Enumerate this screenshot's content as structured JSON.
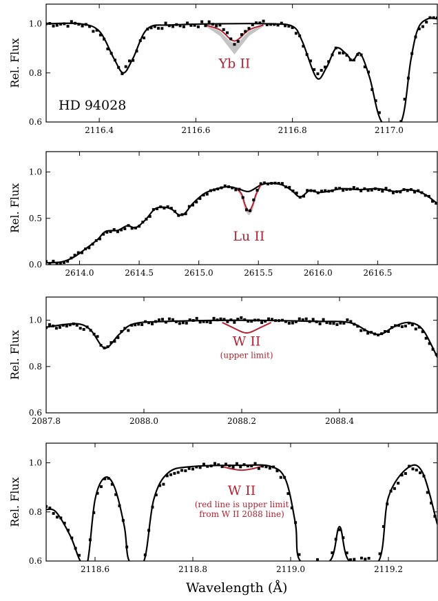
{
  "figure": {
    "ylabel": "Rel. Flux",
    "xlabel": "Wavelength (Å)"
  },
  "colors": {
    "data": "#000000",
    "model": "#000000",
    "red": "#b22230",
    "band": "#c4c4c4"
  },
  "chart_data": [
    {
      "type": "scatter",
      "xlim": [
        2116.29,
        2117.1
      ],
      "ylim": [
        0.6,
        1.08
      ],
      "xticks": [
        2116.4,
        2116.6,
        2116.8,
        2117.0
      ],
      "xtick_labels": [
        "2116.4",
        "2116.6",
        "2116.8",
        "2117.0"
      ],
      "yticks": [
        0.6,
        0.8,
        1.0
      ],
      "ytick_labels": [
        "0.6",
        "0.8",
        "1.0"
      ],
      "ylabel": "Rel. Flux",
      "star_label": "HD 94028",
      "annotation": {
        "lines": [
          "Yb II"
        ],
        "x": 2116.68,
        "y": 0.82
      },
      "line_center": 2116.68,
      "continuum": [
        [
          2116.29,
          1.0
        ],
        [
          2116.36,
          1.0
        ],
        [
          2116.4,
          0.97
        ],
        [
          2116.43,
          0.86
        ],
        [
          2116.45,
          0.8
        ],
        [
          2116.47,
          0.86
        ],
        [
          2116.5,
          0.98
        ],
        [
          2116.55,
          0.995
        ],
        [
          2116.65,
          1.0
        ],
        [
          2116.75,
          1.0
        ],
        [
          2116.8,
          0.99
        ],
        [
          2116.82,
          0.93
        ],
        [
          2116.85,
          0.78
        ],
        [
          2116.87,
          0.82
        ],
        [
          2116.89,
          0.9
        ],
        [
          2116.91,
          0.88
        ],
        [
          2116.925,
          0.85
        ],
        [
          2116.94,
          0.88
        ],
        [
          2116.96,
          0.78
        ],
        [
          2116.985,
          0.6
        ],
        [
          2117.025,
          0.6
        ],
        [
          2117.045,
          0.85
        ],
        [
          2117.06,
          0.98
        ],
        [
          2117.08,
          1.02
        ],
        [
          2117.1,
          1.02
        ]
      ],
      "red_line": [
        [
          2116.62,
          0.995
        ],
        [
          2116.65,
          0.975
        ],
        [
          2116.67,
          0.94
        ],
        [
          2116.68,
          0.93
        ],
        [
          2116.69,
          0.94
        ],
        [
          2116.71,
          0.975
        ],
        [
          2116.74,
          0.995
        ]
      ],
      "band": [
        [
          2116.62,
          0.995,
          0.99
        ],
        [
          2116.65,
          0.97,
          0.95
        ],
        [
          2116.67,
          0.93,
          0.9
        ],
        [
          2116.68,
          0.92,
          0.875
        ],
        [
          2116.69,
          0.93,
          0.9
        ],
        [
          2116.71,
          0.97,
          0.95
        ],
        [
          2116.74,
          0.995,
          0.99
        ]
      ],
      "observed": {
        "x_start": 2116.29,
        "x_end": 2117.1,
        "step": 0.0075,
        "noise": 0.012,
        "trough_from": 2116.985,
        "trough_to": 2117.025,
        "line_depth": 0.075,
        "line_width": 0.02
      }
    },
    {
      "type": "scatter",
      "xlim": [
        2613.72,
        2617.0
      ],
      "ylim": [
        0.0,
        1.22
      ],
      "xticks": [
        2614.0,
        2614.5,
        2615.0,
        2615.5,
        2616.0,
        2616.5
      ],
      "xtick_labels": [
        "2614.0",
        "2614.5",
        "2615.0",
        "2615.5",
        "2616.0",
        "2616.5"
      ],
      "yticks": [
        0.0,
        0.5,
        1.0
      ],
      "ytick_labels": [
        "0.0",
        "0.5",
        "1.0"
      ],
      "ylabel": "Rel. Flux",
      "annotation": {
        "lines": [
          "Lu II"
        ],
        "x": 2615.42,
        "y": 0.26
      },
      "line_center": 2615.42,
      "continuum": [
        [
          2613.72,
          0.02
        ],
        [
          2613.85,
          0.03
        ],
        [
          2613.95,
          0.08
        ],
        [
          2614.05,
          0.17
        ],
        [
          2614.15,
          0.27
        ],
        [
          2614.22,
          0.36
        ],
        [
          2614.32,
          0.37
        ],
        [
          2614.4,
          0.42
        ],
        [
          2614.47,
          0.4
        ],
        [
          2614.55,
          0.48
        ],
        [
          2614.63,
          0.6
        ],
        [
          2614.7,
          0.62
        ],
        [
          2614.77,
          0.6
        ],
        [
          2614.83,
          0.54
        ],
        [
          2614.88,
          0.55
        ],
        [
          2614.95,
          0.66
        ],
        [
          2615.05,
          0.77
        ],
        [
          2615.15,
          0.82
        ],
        [
          2615.25,
          0.84
        ],
        [
          2615.33,
          0.82
        ],
        [
          2615.42,
          0.79
        ],
        [
          2615.52,
          0.86
        ],
        [
          2615.6,
          0.88
        ],
        [
          2615.7,
          0.86
        ],
        [
          2615.78,
          0.8
        ],
        [
          2615.85,
          0.73
        ],
        [
          2615.93,
          0.8
        ],
        [
          2616.0,
          0.78
        ],
        [
          2616.08,
          0.79
        ],
        [
          2616.2,
          0.82
        ],
        [
          2616.35,
          0.81
        ],
        [
          2616.5,
          0.82
        ],
        [
          2616.65,
          0.79
        ],
        [
          2616.75,
          0.81
        ],
        [
          2616.88,
          0.77
        ],
        [
          2617.0,
          0.66
        ]
      ],
      "red_line": [
        [
          2615.32,
          0.82
        ],
        [
          2615.36,
          0.76
        ],
        [
          2615.39,
          0.64
        ],
        [
          2615.42,
          0.58
        ],
        [
          2615.45,
          0.64
        ],
        [
          2615.48,
          0.76
        ],
        [
          2615.52,
          0.86
        ]
      ],
      "band": [
        [
          2615.32,
          0.82,
          0.81
        ],
        [
          2615.36,
          0.76,
          0.72
        ],
        [
          2615.39,
          0.63,
          0.58
        ],
        [
          2615.42,
          0.58,
          0.53
        ],
        [
          2615.45,
          0.63,
          0.58
        ],
        [
          2615.48,
          0.76,
          0.72
        ],
        [
          2615.52,
          0.86,
          0.85
        ]
      ],
      "observed": {
        "x_start": 2613.72,
        "x_end": 2617.0,
        "step": 0.03,
        "noise": 0.02,
        "line_depth": 0.24,
        "line_width": 0.05
      }
    },
    {
      "type": "scatter",
      "xlim": [
        2087.8,
        2088.6
      ],
      "ylim": [
        0.6,
        1.1
      ],
      "xticks": [
        2087.8,
        2088.0,
        2088.2,
        2088.4
      ],
      "xtick_labels": [
        "2087.8",
        "2088.0",
        "2088.2",
        "2088.4"
      ],
      "yticks": [
        0.6,
        0.8,
        1.0
      ],
      "ytick_labels": [
        "0.6",
        "0.8",
        "1.0"
      ],
      "ylabel": "Rel. Flux",
      "annotation": {
        "lines": [
          "W II",
          "(upper limit)"
        ],
        "x": 2088.21,
        "y": 0.89
      },
      "line_center": 2088.21,
      "continuum": [
        [
          2087.8,
          0.97
        ],
        [
          2087.86,
          0.985
        ],
        [
          2087.89,
          0.96
        ],
        [
          2087.92,
          0.88
        ],
        [
          2087.95,
          0.94
        ],
        [
          2087.98,
          0.985
        ],
        [
          2088.05,
          0.995
        ],
        [
          2088.2,
          1.0
        ],
        [
          2088.35,
          0.995
        ],
        [
          2088.42,
          0.99
        ],
        [
          2088.46,
          0.95
        ],
        [
          2088.485,
          0.94
        ],
        [
          2088.51,
          0.97
        ],
        [
          2088.54,
          0.99
        ],
        [
          2088.57,
          0.96
        ],
        [
          2088.6,
          0.84
        ]
      ],
      "red_line": [
        [
          2088.16,
          0.99
        ],
        [
          2088.18,
          0.97
        ],
        [
          2088.2,
          0.95
        ],
        [
          2088.21,
          0.945
        ],
        [
          2088.22,
          0.95
        ],
        [
          2088.24,
          0.97
        ],
        [
          2088.26,
          0.99
        ]
      ],
      "band": [],
      "observed": {
        "x_start": 2087.8,
        "x_end": 2088.6,
        "step": 0.007,
        "noise": 0.012,
        "line_depth": 0.0,
        "line_width": 0.02
      }
    },
    {
      "type": "scatter",
      "xlim": [
        2118.5,
        2119.3
      ],
      "ylim": [
        0.6,
        1.08
      ],
      "xticks": [
        2118.6,
        2118.8,
        2119.0,
        2119.2
      ],
      "xtick_labels": [
        "2118.6",
        "2118.8",
        "2119.0",
        "2119.2"
      ],
      "yticks": [
        0.6,
        0.8,
        1.0
      ],
      "ytick_labels": [
        "0.6",
        "0.8",
        "1.0"
      ],
      "ylabel": "Rel. Flux",
      "xlabel": "Wavelength (Å)",
      "annotation": {
        "lines": [
          "W II",
          "(red line is upper limit",
          "from W II 2088 line)"
        ],
        "x": 2118.9,
        "y": 0.87
      },
      "line_center": 2118.9,
      "continuum": [
        [
          2118.5,
          0.81
        ],
        [
          2118.52,
          0.8
        ],
        [
          2118.55,
          0.7
        ],
        [
          2118.57,
          0.6
        ],
        [
          2118.585,
          0.6
        ],
        [
          2118.6,
          0.85
        ],
        [
          2118.62,
          0.94
        ],
        [
          2118.64,
          0.9
        ],
        [
          2118.66,
          0.74
        ],
        [
          2118.67,
          0.6
        ],
        [
          2118.7,
          0.6
        ],
        [
          2118.72,
          0.85
        ],
        [
          2118.75,
          0.96
        ],
        [
          2118.8,
          0.985
        ],
        [
          2118.9,
          0.99
        ],
        [
          2118.96,
          0.985
        ],
        [
          2118.99,
          0.93
        ],
        [
          2119.01,
          0.75
        ],
        [
          2119.02,
          0.6
        ],
        [
          2119.08,
          0.6
        ],
        [
          2119.1,
          0.74
        ],
        [
          2119.12,
          0.6
        ],
        [
          2119.18,
          0.6
        ],
        [
          2119.2,
          0.86
        ],
        [
          2119.24,
          0.98
        ],
        [
          2119.27,
          0.96
        ],
        [
          2119.3,
          0.75
        ]
      ],
      "red_line": [
        [
          2118.86,
          0.985
        ],
        [
          2118.88,
          0.975
        ],
        [
          2118.9,
          0.97
        ],
        [
          2118.92,
          0.975
        ],
        [
          2118.94,
          0.985
        ]
      ],
      "band": [],
      "observed": {
        "x_start": 2118.5,
        "x_end": 2119.3,
        "step": 0.0075,
        "noise": 0.013,
        "line_depth": 0.0,
        "line_width": 0.02
      }
    }
  ]
}
